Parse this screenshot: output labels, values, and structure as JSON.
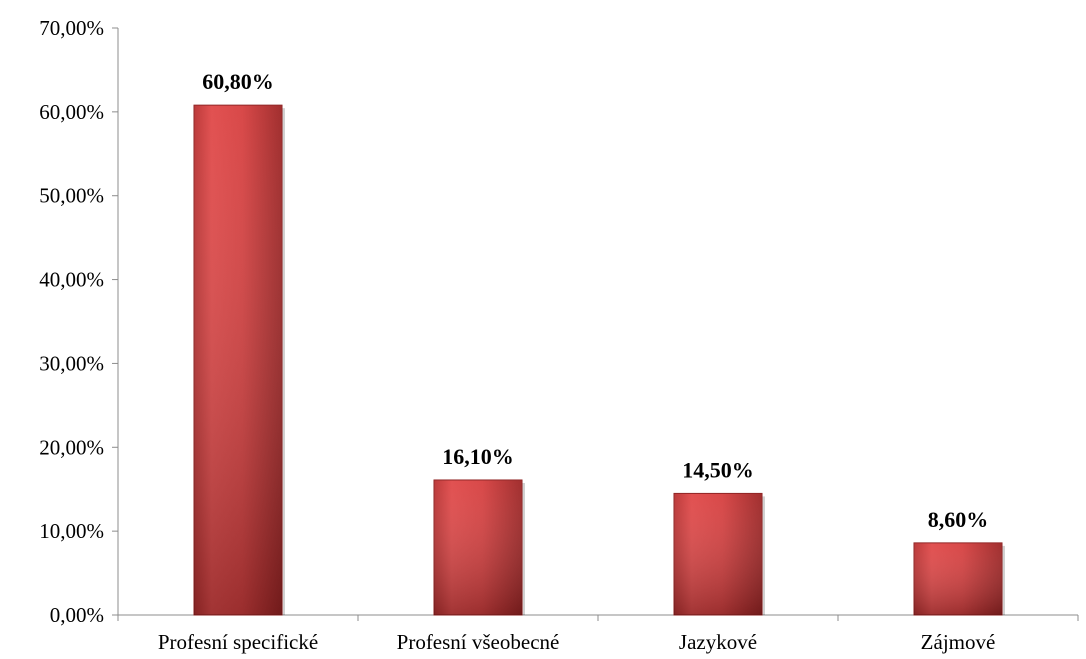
{
  "chart_data": {
    "type": "bar",
    "title": "",
    "xlabel": "",
    "ylabel": "",
    "categories": [
      "Profesní specifické",
      "Profesní všeobecné",
      "Jazykové",
      "Zájmové"
    ],
    "values": [
      60.8,
      16.1,
      14.5,
      8.6
    ],
    "data_labels": [
      "60,80%",
      "16,10%",
      "14,50%",
      "8,60%"
    ],
    "ylim": [
      0,
      70
    ],
    "y_ticks": [
      0,
      10,
      20,
      30,
      40,
      50,
      60,
      70
    ],
    "y_tick_labels": [
      "0,00%",
      "10,00%",
      "20,00%",
      "30,00%",
      "40,00%",
      "50,00%",
      "60,00%",
      "70,00%"
    ],
    "grid": false,
    "legend": "none",
    "colors": {
      "bar_light": "#e24b4b",
      "bar_mid": "#d13b3b",
      "bar_dark": "#8e1f1f",
      "axis": "#8c8c8c",
      "text": "#000000"
    }
  }
}
